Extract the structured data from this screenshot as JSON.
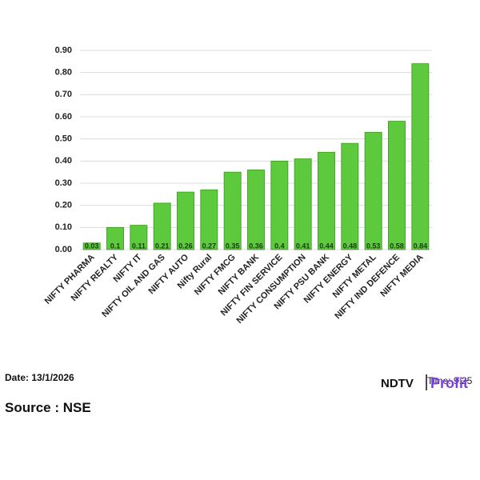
{
  "chart_data": {
    "type": "bar",
    "categories": [
      "NIFTY PHARMA",
      "NIFTY REALTY",
      "NIFTY IT",
      "NIFTY OIL AND GAS",
      "NIFTY AUTO",
      "Nifty Rural",
      "NIFTY FMCG",
      "NIFTY BANK",
      "NIFTY FIN SERVICE",
      "NIFTY CONSUMPTION",
      "NIFTY PSU BANK",
      "NIFTY ENERGY",
      "NIFTY METAL",
      "NIFTY IND DEFENCE",
      "NIFTY MEDIA"
    ],
    "values": [
      0.03,
      0.1,
      0.11,
      0.21,
      0.26,
      0.27,
      0.35,
      0.36,
      0.4,
      0.41,
      0.44,
      0.48,
      0.53,
      0.58,
      0.84
    ],
    "color": "#5dc93c",
    "ylim": [
      0,
      0.9
    ],
    "yticks": [
      {
        "value": 0,
        "label": "0.00"
      },
      {
        "value": 0.1,
        "label": "0.10"
      },
      {
        "value": 0.2,
        "label": "0.20"
      },
      {
        "value": 0.3,
        "label": "0.30"
      },
      {
        "value": 0.4,
        "label": "0.40"
      },
      {
        "value": 0.5,
        "label": "0.50"
      },
      {
        "value": 0.6,
        "label": "0.60"
      },
      {
        "value": 0.7,
        "label": "0.70"
      },
      {
        "value": 0.8,
        "label": "0.80"
      },
      {
        "value": 0.9,
        "label": "0.90"
      }
    ],
    "grid": true
  },
  "footer": {
    "date": "Date: 13/1/2026",
    "source": "Source : NSE",
    "time": "Time: 9:25",
    "brand": "NDTV",
    "brand2": "Profit"
  }
}
